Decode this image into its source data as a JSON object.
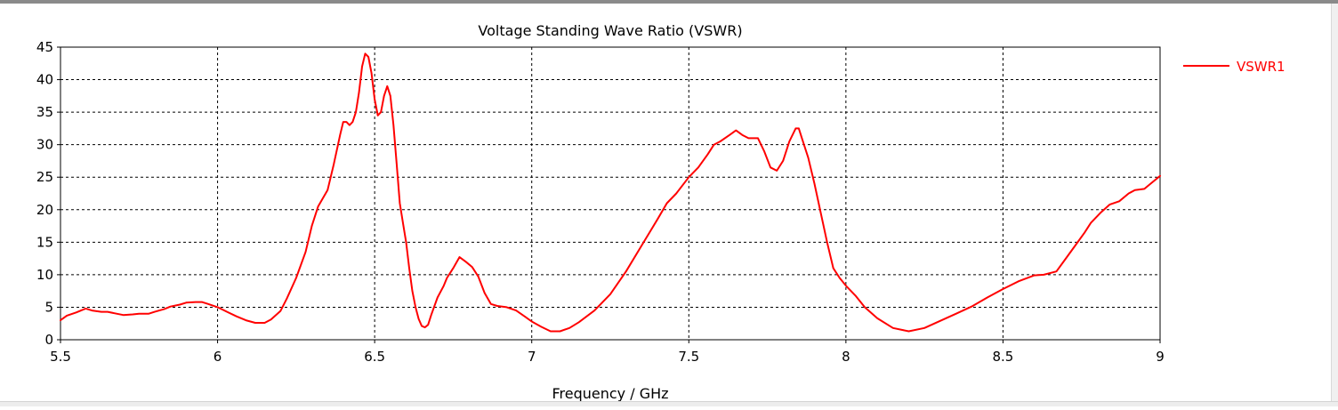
{
  "chart_data": {
    "type": "line",
    "title": "Voltage Standing Wave Ratio (VSWR)",
    "xlabel": "Frequency / GHz",
    "ylabel": "",
    "xlim": [
      5.5,
      9
    ],
    "ylim": [
      0,
      45
    ],
    "xticks": [
      "5.5",
      "6",
      "6.5",
      "7",
      "7.5",
      "8",
      "8.5",
      "9"
    ],
    "yticks": [
      "0",
      "5",
      "10",
      "15",
      "20",
      "25",
      "30",
      "35",
      "40",
      "45"
    ],
    "grid": true,
    "legend_position": "right",
    "series": [
      {
        "name": "VSWR1",
        "color": "#ff0000",
        "x": [
          5.5,
          5.52,
          5.55,
          5.58,
          5.6,
          5.63,
          5.65,
          5.68,
          5.7,
          5.73,
          5.75,
          5.78,
          5.8,
          5.83,
          5.85,
          5.88,
          5.9,
          5.93,
          5.95,
          5.97,
          6.0,
          6.03,
          6.06,
          6.09,
          6.12,
          6.15,
          6.17,
          6.2,
          6.22,
          6.25,
          6.28,
          6.3,
          6.32,
          6.35,
          6.37,
          6.39,
          6.4,
          6.41,
          6.42,
          6.43,
          6.44,
          6.45,
          6.46,
          6.47,
          6.48,
          6.49,
          6.5,
          6.51,
          6.52,
          6.53,
          6.54,
          6.55,
          6.56,
          6.57,
          6.58,
          6.59,
          6.6,
          6.61,
          6.62,
          6.63,
          6.64,
          6.65,
          6.66,
          6.67,
          6.68,
          6.7,
          6.72,
          6.73,
          6.75,
          6.77,
          6.79,
          6.81,
          6.83,
          6.85,
          6.87,
          6.89,
          6.92,
          6.95,
          6.98,
          7.0,
          7.03,
          7.06,
          7.09,
          7.12,
          7.15,
          7.2,
          7.25,
          7.3,
          7.35,
          7.4,
          7.43,
          7.46,
          7.5,
          7.53,
          7.56,
          7.58,
          7.6,
          7.63,
          7.65,
          7.67,
          7.69,
          7.72,
          7.74,
          7.76,
          7.78,
          7.8,
          7.82,
          7.84,
          7.85,
          7.86,
          7.88,
          7.9,
          7.92,
          7.94,
          7.96,
          7.98,
          8.0,
          8.03,
          8.06,
          8.1,
          8.15,
          8.2,
          8.25,
          8.3,
          8.35,
          8.4,
          8.45,
          8.5,
          8.55,
          8.6,
          8.63,
          8.67,
          8.7,
          8.73,
          8.76,
          8.78,
          8.81,
          8.84,
          8.87,
          8.9,
          8.92,
          8.95,
          8.97,
          9.0
        ],
        "y": [
          3.0,
          3.7,
          4.2,
          4.8,
          4.5,
          4.3,
          4.3,
          4.0,
          3.8,
          3.9,
          4.0,
          4.0,
          4.3,
          4.7,
          5.1,
          5.4,
          5.7,
          5.8,
          5.8,
          5.5,
          5.0,
          4.3,
          3.6,
          3.0,
          2.6,
          2.6,
          3.1,
          4.4,
          6.3,
          9.5,
          13.5,
          17.5,
          20.5,
          23.0,
          27.0,
          31.5,
          33.5,
          33.5,
          33.0,
          33.5,
          35.0,
          38.0,
          42.0,
          44.0,
          43.5,
          41.0,
          37.0,
          34.5,
          35.0,
          37.5,
          39.0,
          37.5,
          33.0,
          27.0,
          21.0,
          18.0,
          15.0,
          11.0,
          7.5,
          5.0,
          3.2,
          2.1,
          1.9,
          2.3,
          3.8,
          6.5,
          8.3,
          9.5,
          11.0,
          12.7,
          12.0,
          11.2,
          9.7,
          7.2,
          5.5,
          5.2,
          5.0,
          4.5,
          3.5,
          2.8,
          2.0,
          1.3,
          1.3,
          1.8,
          2.7,
          4.5,
          7.0,
          10.5,
          14.5,
          18.5,
          21.0,
          22.5,
          25.0,
          26.5,
          28.5,
          30.0,
          30.5,
          31.5,
          32.2,
          31.5,
          31.0,
          31.0,
          29.0,
          26.5,
          26.0,
          27.5,
          30.5,
          32.5,
          32.5,
          31.0,
          28.0,
          24.0,
          19.5,
          15.0,
          11.0,
          9.5,
          8.3,
          6.8,
          5.0,
          3.3,
          1.8,
          1.3,
          1.8,
          2.9,
          4.0,
          5.1,
          6.5,
          7.8,
          9.0,
          9.9,
          10.0,
          10.5,
          12.5,
          14.5,
          16.5,
          18.0,
          19.5,
          20.8,
          21.3,
          22.5,
          23.0,
          23.2,
          24.0,
          25.2
        ]
      }
    ]
  }
}
